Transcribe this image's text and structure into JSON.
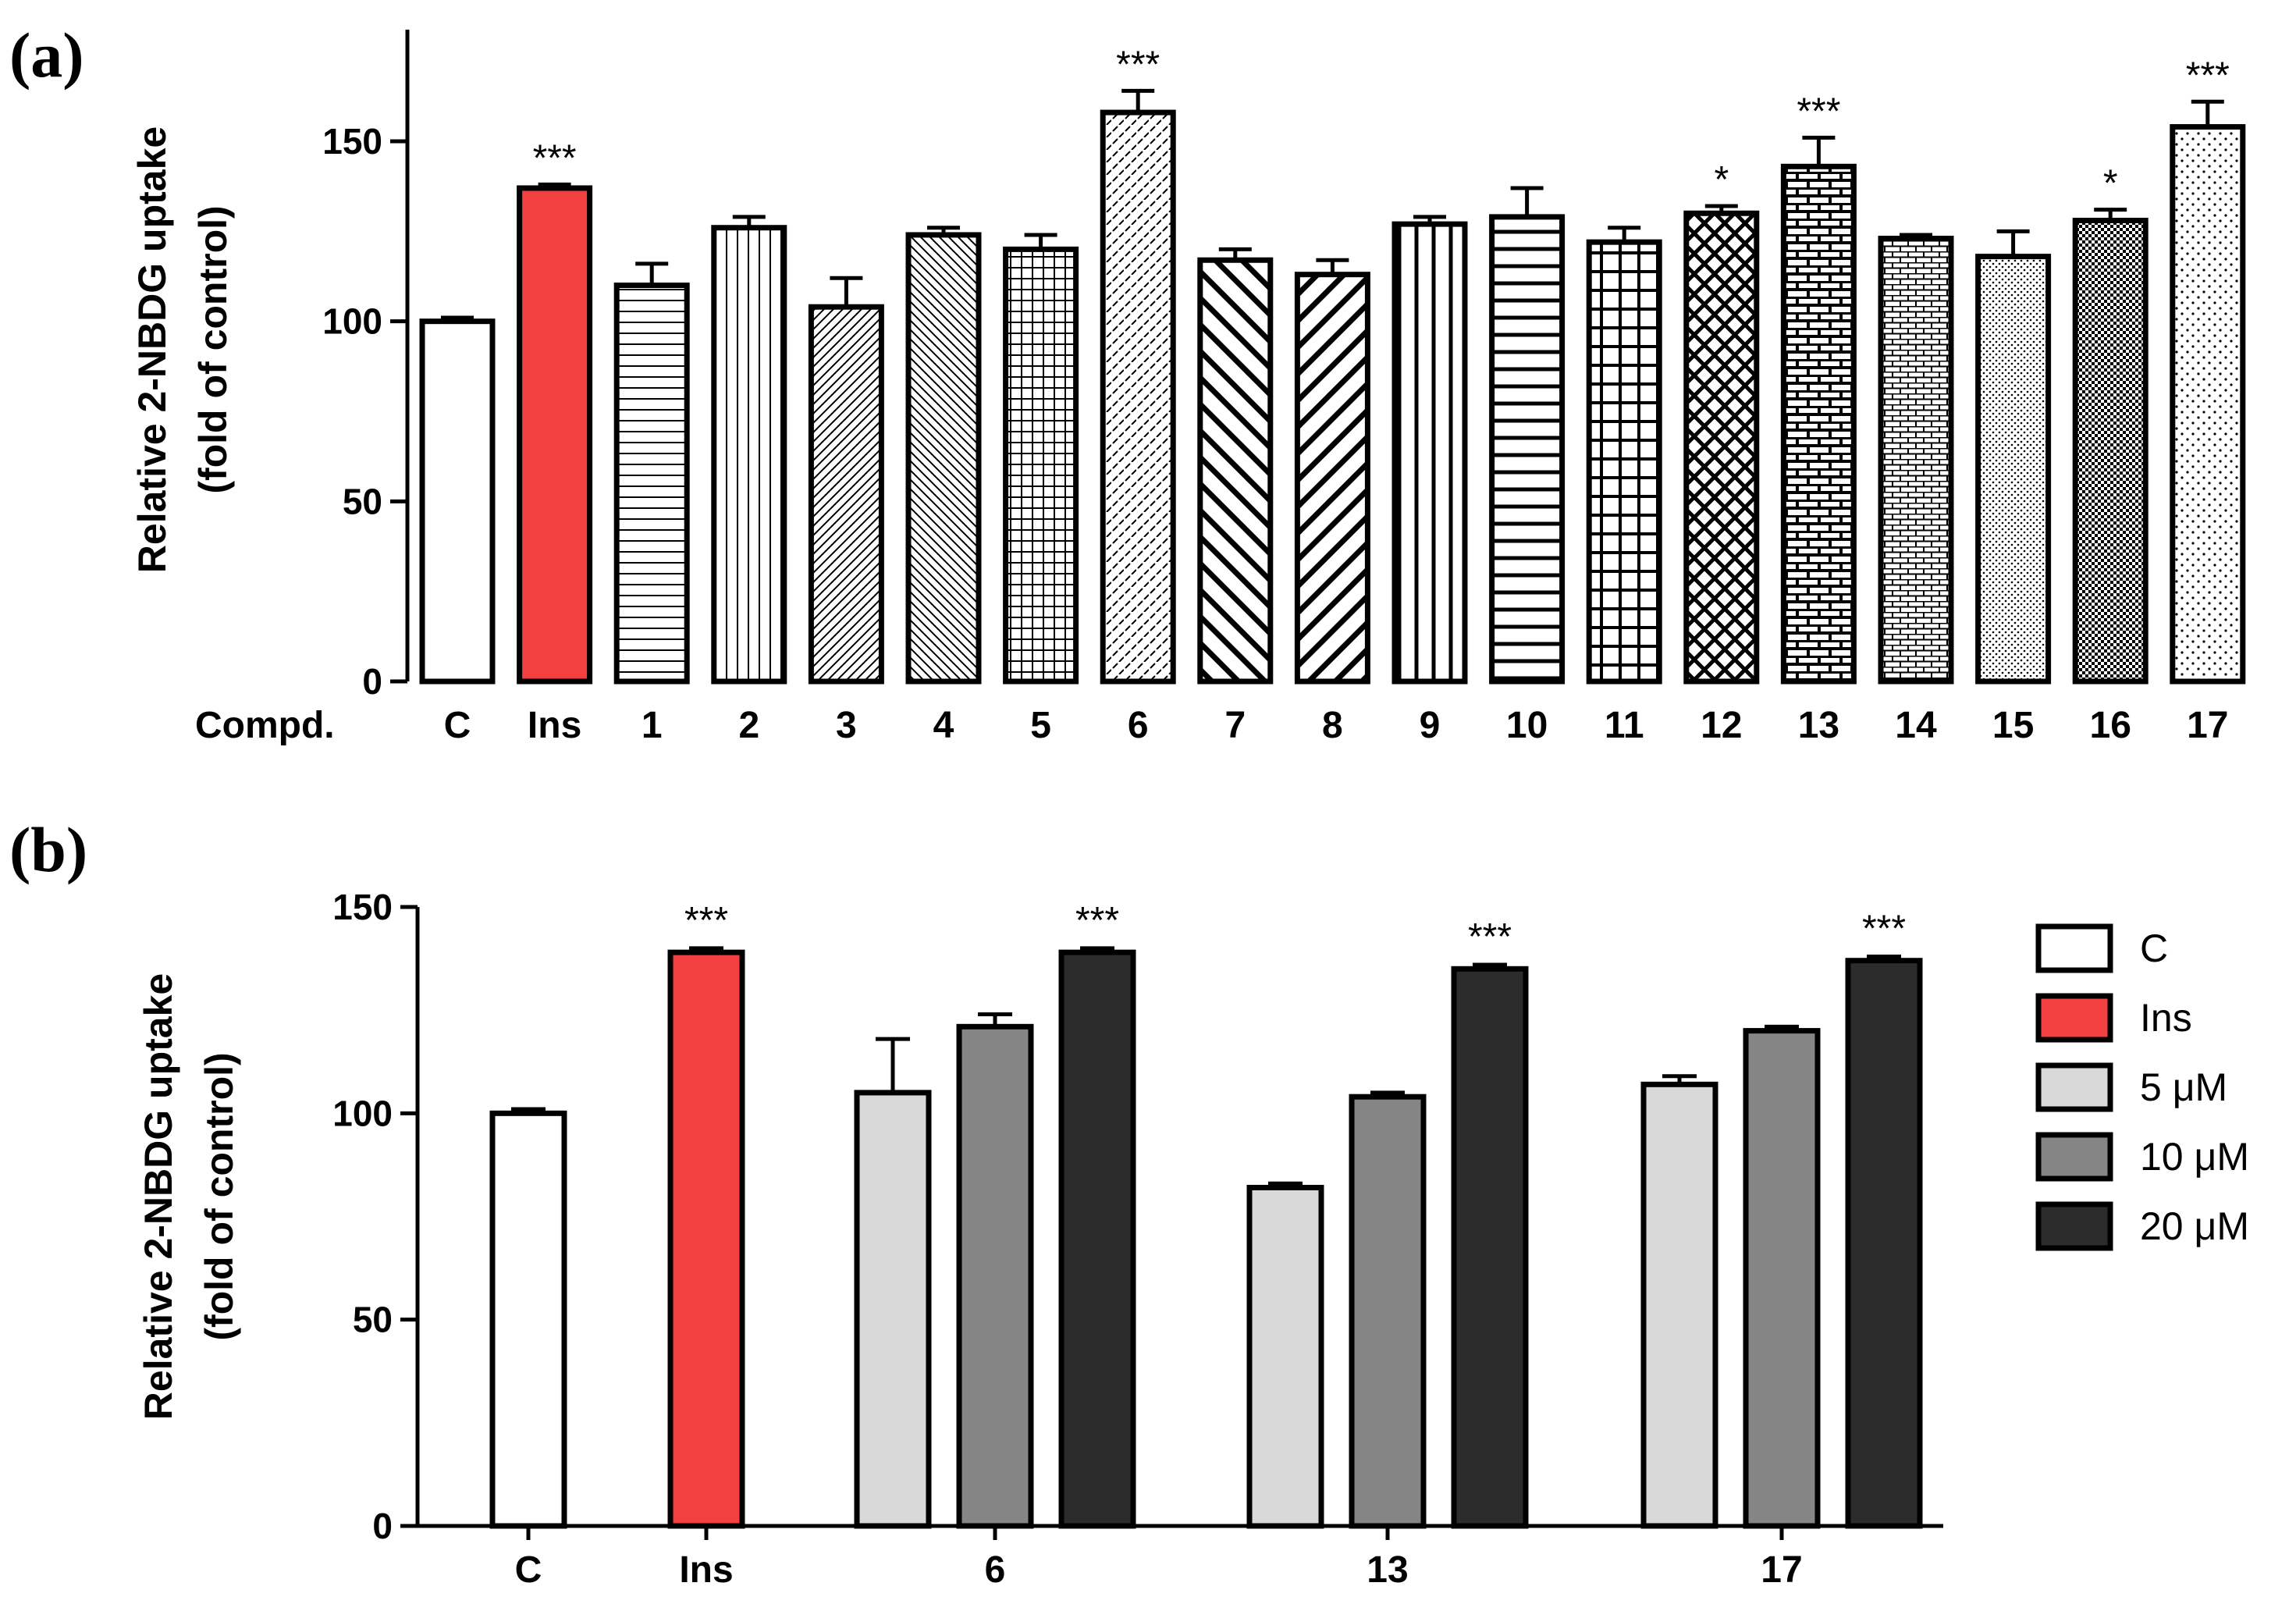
{
  "chart_data": [
    {
      "type": "bar",
      "panel_label": "(a)",
      "ylabel_line1": "Relative 2-NBDG uptake",
      "ylabel_line2": "(fold of control)",
      "xaxis_title": "Compd.",
      "ylim": [
        0,
        180
      ],
      "yticks": [
        0,
        50,
        100,
        150
      ],
      "categories": [
        "C",
        "Ins",
        "1",
        "2",
        "3",
        "4",
        "5",
        "6",
        "7",
        "8",
        "9",
        "10",
        "11",
        "12",
        "13",
        "14",
        "15",
        "16",
        "17"
      ],
      "values": [
        100,
        137,
        110,
        126,
        104,
        124,
        120,
        158,
        117,
        113,
        127,
        129,
        122,
        130,
        143,
        123,
        118,
        128,
        154
      ],
      "errors": [
        1,
        1,
        6,
        3,
        8,
        2,
        4,
        6,
        3,
        4,
        2,
        8,
        4,
        2,
        8,
        1,
        7,
        3,
        7
      ],
      "significance": [
        "",
        "***",
        "",
        "",
        "",
        "",
        "",
        "***",
        "",
        "",
        "",
        "",
        "",
        "*",
        "***",
        "",
        "",
        "*",
        "***"
      ],
      "fills": [
        "white",
        "red",
        "hlines",
        "vlines",
        "diag-right",
        "diag-left",
        "grid",
        "dashes",
        "diag-left-bold",
        "diag-right-bold",
        "vlines-bold",
        "hlines-bold",
        "grid-bold",
        "crosshatch",
        "brick-bold",
        "brick",
        "dots-dense",
        "checker",
        "dots-sparse"
      ]
    },
    {
      "type": "bar",
      "panel_label": "(b)",
      "ylabel_line1": "Relative 2-NBDG uptake",
      "ylabel_line2": "(fold of control)",
      "ylim": [
        0,
        150
      ],
      "yticks": [
        0,
        50,
        100,
        150
      ],
      "groups": [
        {
          "label": "C",
          "bars": [
            {
              "series": "C",
              "value": 100,
              "error": 1,
              "sig": ""
            }
          ]
        },
        {
          "label": "Ins",
          "bars": [
            {
              "series": "Ins",
              "value": 139,
              "error": 1,
              "sig": "***"
            }
          ]
        },
        {
          "label": "6",
          "bars": [
            {
              "series": "5 μM",
              "value": 105,
              "error": 13,
              "sig": ""
            },
            {
              "series": "10 μM",
              "value": 121,
              "error": 3,
              "sig": ""
            },
            {
              "series": "20 μM",
              "value": 139,
              "error": 1,
              "sig": "***"
            }
          ]
        },
        {
          "label": "13",
          "bars": [
            {
              "series": "5 μM",
              "value": 82,
              "error": 1,
              "sig": ""
            },
            {
              "series": "10 μM",
              "value": 104,
              "error": 1,
              "sig": ""
            },
            {
              "series": "20 μM",
              "value": 135,
              "error": 1,
              "sig": "***"
            }
          ]
        },
        {
          "label": "17",
          "bars": [
            {
              "series": "5 μM",
              "value": 107,
              "error": 2,
              "sig": ""
            },
            {
              "series": "10 μM",
              "value": 120,
              "error": 1,
              "sig": ""
            },
            {
              "series": "20 μM",
              "value": 137,
              "error": 1,
              "sig": "***"
            }
          ]
        }
      ],
      "legend": [
        {
          "name": "C",
          "color": "#ffffff"
        },
        {
          "name": "Ins",
          "color": "#f23f3f"
        },
        {
          "name": "5 μM",
          "color": "#d9d9d9"
        },
        {
          "name": "10 μM",
          "color": "#858585"
        },
        {
          "name": "20 μM",
          "color": "#2c2c2c"
        }
      ]
    }
  ]
}
